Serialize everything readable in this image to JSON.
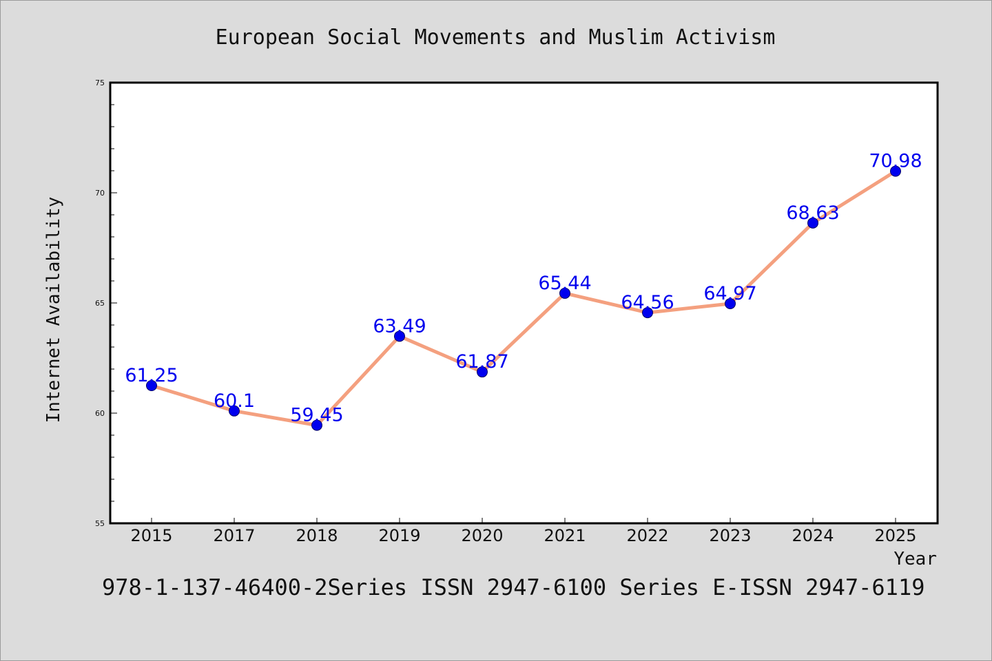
{
  "footer_text": "978-1-137-46400-2Series ISSN 2947-6100 Series E-ISSN 2947-6119",
  "colors": {
    "background": "#dcdcdc",
    "plot_background": "#ffffff",
    "line": "#f4a07f",
    "marker": "#0000ee",
    "data_label": "#0000ee",
    "axis": "#000000"
  },
  "chart_data": {
    "type": "line",
    "title": "European Social Movements and Muslim Activism",
    "xlabel": "Year",
    "ylabel": "Internet Availability",
    "categories": [
      "2015",
      "2017",
      "2018",
      "2019",
      "2020",
      "2021",
      "2022",
      "2023",
      "2024",
      "2025"
    ],
    "values": [
      61.25,
      60.1,
      59.45,
      63.49,
      61.87,
      65.44,
      64.56,
      64.97,
      68.63,
      70.98
    ],
    "data_labels": [
      "61.25",
      "60.1",
      "59.45",
      "63.49",
      "61.87",
      "65.44",
      "64.56",
      "64.97",
      "68.63",
      "70.98"
    ],
    "ylim": [
      55,
      75
    ],
    "yticks": [
      55,
      60,
      65,
      70,
      75
    ],
    "y_minor_step": 1,
    "grid": false,
    "legend": "none"
  }
}
